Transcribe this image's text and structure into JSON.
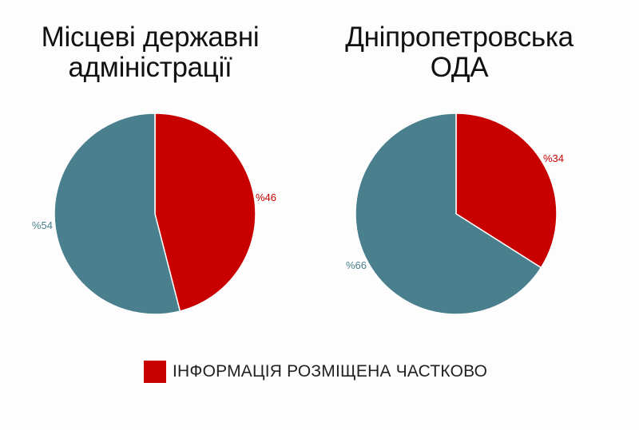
{
  "colors": {
    "partial": "#c80000",
    "other": "#4a808e"
  },
  "chart_data": [
    {
      "type": "pie",
      "title": "Місцеві державні адміністрації",
      "slices": [
        {
          "label": "ІНФОРМАЦІЯ РОЗМІЩЕНА ЧАСТКОВО",
          "value": 46,
          "display": "%46",
          "color": "#c80000"
        },
        {
          "label": "",
          "value": 54,
          "display": "%54",
          "color": "#4a808e"
        }
      ]
    },
    {
      "type": "pie",
      "title": "Дніпропетровська ОДА",
      "slices": [
        {
          "label": "ІНФОРМАЦІЯ РОЗМІЩЕНА ЧАСТКОВО",
          "value": 34,
          "display": "%34",
          "color": "#c80000"
        },
        {
          "label": "",
          "value": 66,
          "display": "%66",
          "color": "#4a808e"
        }
      ]
    }
  ],
  "legend": {
    "label": "ІНФОРМАЦІЯ РОЗМІЩЕНА ЧАСТКОВО",
    "color": "#c80000"
  }
}
